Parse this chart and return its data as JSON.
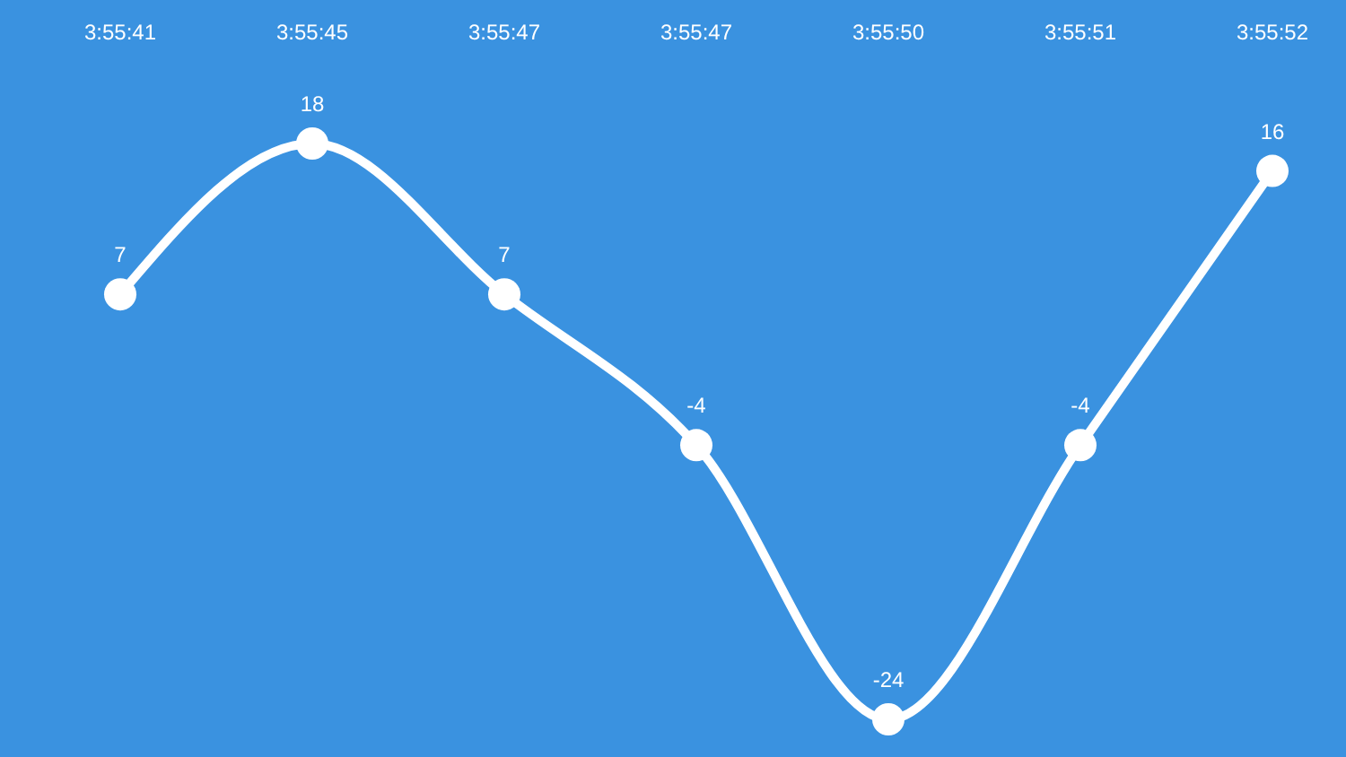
{
  "chart_data": {
    "type": "line",
    "categories": [
      "3:55:41",
      "3:55:45",
      "3:55:47",
      "3:55:47",
      "3:55:50",
      "3:55:51",
      "3:55:52"
    ],
    "series": [
      {
        "color": "#ffffff",
        "values": [
          7,
          18,
          7,
          -4,
          -24,
          -4,
          16
        ]
      }
    ],
    "data_labels": true,
    "marker": "circle",
    "line_style": "solid",
    "grid": false,
    "tick_labels": "x"
  }
}
